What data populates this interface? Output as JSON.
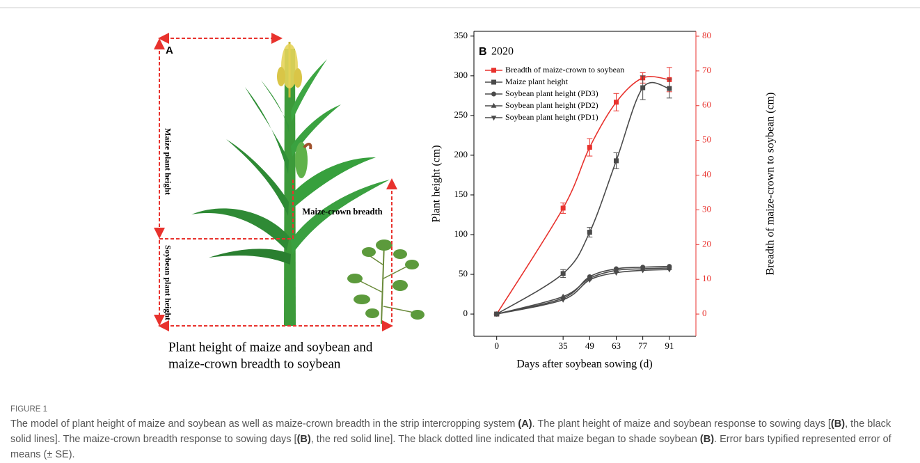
{
  "illustration": {
    "label": "A",
    "maize_height": "Maize plant height",
    "crown_breadth": "Maize-crown breadth",
    "soybean_height": "Soybean plant height",
    "caption_lines": [
      "Plant height of maize and soybean and",
      "maize-crown breadth to soybean"
    ]
  },
  "chart_data": {
    "type": "line",
    "panel_label": "B",
    "title": "2020",
    "xlabel": "Days after soybean sowing (d)",
    "ylabel": "Plant height (cm)",
    "y2label": "Breadth of maize-crown to soybean (cm)",
    "x": [
      0,
      35,
      49,
      63,
      77,
      91
    ],
    "xlim": [
      -12,
      105
    ],
    "xticks": [
      0,
      35,
      49,
      63,
      77,
      91
    ],
    "ylim": [
      -28,
      356
    ],
    "yticks": [
      0,
      50,
      100,
      150,
      200,
      250,
      300,
      350
    ],
    "y2lim": [
      -6.4,
      81.4
    ],
    "y2ticks": [
      0,
      10,
      20,
      30,
      40,
      50,
      60,
      70,
      80
    ],
    "series": [
      {
        "name": "Breadth of maize-crown to soybean",
        "color": "#e8322d",
        "marker": "square",
        "axis": "y2",
        "values": [
          0,
          30.5,
          48,
          61,
          68,
          67.5
        ],
        "errors": [
          0,
          1.5,
          2.5,
          2.5,
          1.5,
          3.5
        ]
      },
      {
        "name": "Maize plant height",
        "color": "#4a4a4a",
        "marker": "square",
        "values": [
          0,
          51,
          103,
          193,
          285,
          284
        ],
        "errors": [
          0,
          5,
          6,
          10,
          15,
          12
        ]
      },
      {
        "name": "Soybean plant height (PD3)",
        "color": "#4a4a4a",
        "marker": "circle",
        "values": [
          0,
          20,
          47,
          57,
          59,
          60
        ]
      },
      {
        "name": "Soybean plant height (PD2)",
        "color": "#4a4a4a",
        "marker": "triangle-up",
        "values": [
          0,
          22,
          45,
          55,
          57,
          58
        ]
      },
      {
        "name": "Soybean plant height (PD1)",
        "color": "#4a4a4a",
        "marker": "triangle-down",
        "values": [
          0,
          18,
          43,
          52,
          55,
          56
        ]
      }
    ]
  },
  "caption": {
    "label": "FIGURE 1",
    "segments": [
      {
        "text": "The model of plant height of maize and soybean as well as maize-crown breadth in the strip intercropping system ",
        "bold": false
      },
      {
        "text": "(A)",
        "bold": true
      },
      {
        "text": ". The plant height of maize and soybean response to sowing days [",
        "bold": false
      },
      {
        "text": "(B)",
        "bold": true
      },
      {
        "text": ", the black solid lines]. The maize-crown breadth response to sowing days [",
        "bold": false
      },
      {
        "text": "(B)",
        "bold": true
      },
      {
        "text": ", the red solid line]. The black dotted line indicated that maize began to shade soybean ",
        "bold": false
      },
      {
        "text": "(B)",
        "bold": true
      },
      {
        "text": ". Error bars typified represented error of means (± SE).",
        "bold": false
      }
    ]
  }
}
